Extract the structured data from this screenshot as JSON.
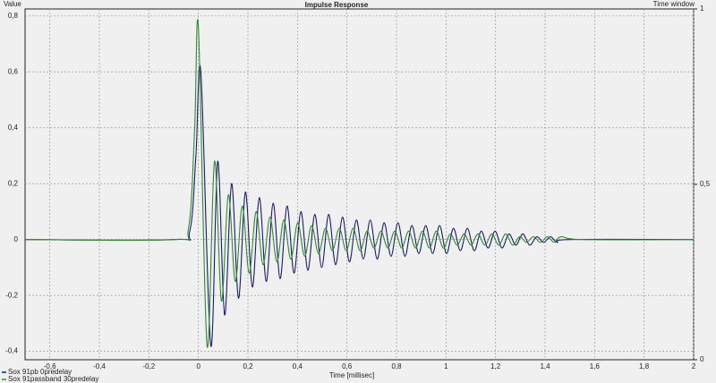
{
  "chart_data": {
    "type": "line",
    "title": "Impulse Response",
    "y_label": "Value",
    "y2_label": "Time window",
    "x_label": "Time [millisec]",
    "xlim": [
      -0.7,
      2
    ],
    "ylim": [
      -0.43,
      0.825
    ],
    "y2lim": [
      0,
      1
    ],
    "xticks": [
      {
        "value": -0.6,
        "label": "-0,6"
      },
      {
        "value": -0.4,
        "label": "-0,4"
      },
      {
        "value": -0.2,
        "label": "-0,2"
      },
      0,
      {
        "value": 0.2,
        "label": "0,2"
      },
      {
        "value": 0.4,
        "label": "0,4"
      },
      {
        "value": 0.6,
        "label": "0,6"
      },
      {
        "value": 0.8,
        "label": "0,8"
      },
      1,
      {
        "value": 1.2,
        "label": "1,2"
      },
      {
        "value": 1.4,
        "label": "1,4"
      },
      {
        "value": 1.6,
        "label": "1,6"
      },
      {
        "value": 1.8,
        "label": "1,8"
      },
      2
    ],
    "yticks": [
      {
        "value": -0.4,
        "label": "-0,4"
      },
      {
        "value": -0.2,
        "label": "-0,2"
      },
      0,
      {
        "value": 0.2,
        "label": "0,2"
      },
      {
        "value": 0.4,
        "label": "0,4"
      },
      {
        "value": 0.6,
        "label": "0,6"
      },
      {
        "value": 0.8,
        "label": "0,8"
      }
    ],
    "y2ticks": [
      0,
      {
        "value": 0.5,
        "label": "0,5"
      },
      1
    ],
    "grid": true,
    "series": [
      {
        "name": "Sox 91passband 30predelay",
        "color": "#2f8a2f",
        "x": [
          -0.7,
          -0.1,
          -0.04,
          -0.015,
          0,
          0.035,
          0.065,
          0.093,
          0.121,
          0.149,
          0.177,
          0.205,
          0.233,
          0.261,
          0.289,
          0.317,
          0.345,
          0.373,
          0.401,
          0.429,
          0.457,
          0.485,
          0.513,
          0.541,
          0.569,
          0.597,
          0.625,
          0.653,
          0.681,
          0.709,
          0.737,
          0.765,
          0.793,
          0.821,
          0.849,
          0.877,
          0.905,
          0.933,
          0.961,
          0.989,
          1.017,
          1.045,
          1.073,
          1.101,
          1.129,
          1.157,
          1.185,
          1.213,
          1.241,
          1.269,
          1.297,
          1.325,
          1.353,
          1.381,
          1.409,
          1.437,
          1.465,
          1.55,
          2
        ],
        "values": [
          0,
          0,
          0.04,
          0.4,
          0.76,
          -0.38,
          0.28,
          -0.22,
          0.16,
          -0.15,
          0.12,
          -0.12,
          0.1,
          -0.09,
          0.08,
          -0.08,
          0.07,
          -0.07,
          0.06,
          -0.06,
          0.05,
          -0.05,
          0.04,
          -0.04,
          0.04,
          -0.04,
          0.04,
          -0.04,
          0.03,
          -0.03,
          0.03,
          -0.03,
          0.03,
          -0.03,
          0.03,
          -0.03,
          0.03,
          -0.03,
          0.03,
          -0.03,
          0.02,
          -0.02,
          0.02,
          -0.02,
          0.02,
          -0.02,
          0.02,
          -0.02,
          0.02,
          -0.02,
          0.01,
          -0.01,
          0.01,
          -0.01,
          0.01,
          -0.01,
          0.01,
          0,
          0
        ]
      },
      {
        "name": "Sox 91pb 0predelay",
        "color": "#1a1a6a",
        "x": [
          -0.7,
          -0.1,
          -0.035,
          -0.01,
          0.01,
          0.05,
          0.078,
          0.106,
          0.134,
          0.162,
          0.19,
          0.218,
          0.246,
          0.274,
          0.302,
          0.33,
          0.358,
          0.386,
          0.414,
          0.442,
          0.47,
          0.498,
          0.526,
          0.554,
          0.582,
          0.61,
          0.638,
          0.666,
          0.694,
          0.722,
          0.75,
          0.778,
          0.806,
          0.834,
          0.862,
          0.89,
          0.918,
          0.946,
          0.974,
          1.002,
          1.03,
          1.058,
          1.086,
          1.114,
          1.142,
          1.17,
          1.198,
          1.226,
          1.254,
          1.282,
          1.31,
          1.338,
          1.366,
          1.394,
          1.422,
          1.45,
          1.5,
          2
        ],
        "values": [
          0,
          0,
          0.03,
          0.3,
          0.6,
          -0.38,
          0.28,
          -0.27,
          0.2,
          -0.21,
          0.17,
          -0.17,
          0.15,
          -0.15,
          0.13,
          -0.14,
          0.12,
          -0.12,
          0.1,
          -0.11,
          0.09,
          -0.1,
          0.09,
          -0.09,
          0.08,
          -0.08,
          0.07,
          -0.07,
          0.07,
          -0.07,
          0.06,
          -0.06,
          0.06,
          -0.06,
          0.05,
          -0.05,
          0.05,
          -0.05,
          0.05,
          -0.05,
          0.04,
          -0.04,
          0.04,
          -0.04,
          0.03,
          -0.03,
          0.03,
          -0.03,
          0.02,
          -0.02,
          0.02,
          -0.02,
          0.01,
          -0.01,
          0.01,
          -0.01,
          0,
          0
        ]
      }
    ]
  }
}
